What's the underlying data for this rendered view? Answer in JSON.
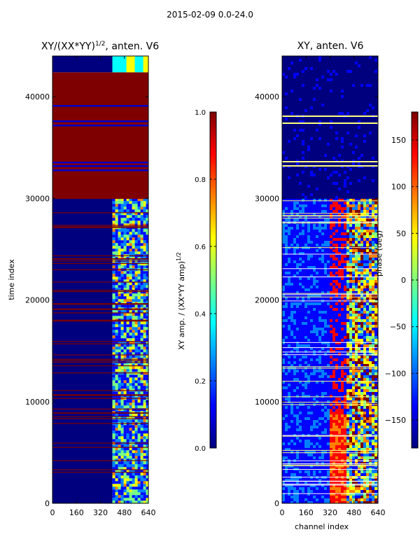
{
  "figure": {
    "suptitle": "2015-02-09 0.0-24.0"
  },
  "colormap": [
    "#00007f",
    "#0000ff",
    "#007fff",
    "#00ffff",
    "#7fff7f",
    "#ffff00",
    "#ff7f00",
    "#ff0000",
    "#7f0000"
  ],
  "chart_data": [
    {
      "type": "heatmap",
      "title": "XY/(XX*YY)",
      "title_sup": "1/2",
      "title_suffix": ", anten. V6",
      "xlabel": "",
      "ylabel": "time index",
      "x_ticks": [
        "0",
        "160",
        "320",
        "480",
        "640"
      ],
      "y_ticks": [
        "0",
        "10000",
        "20000",
        "30000",
        "40000"
      ],
      "xlim": [
        0,
        640
      ],
      "ylim": [
        0,
        44000
      ],
      "colorbar": {
        "label": "XY amp. / (XX*YY amp)",
        "label_sup": "1/2",
        "range": [
          0.0,
          1.0
        ],
        "ticks": [
          "0.0",
          "0.2",
          "0.4",
          "0.6",
          "0.8",
          "1.0"
        ]
      },
      "regions": [
        {
          "y": [
            30000,
            42400
          ],
          "x": [
            0,
            640
          ],
          "level": 1.0
        },
        {
          "y": [
            42400,
            44000
          ],
          "x": [
            0,
            400
          ],
          "level": 0.02
        },
        {
          "y": [
            42400,
            44000
          ],
          "x": [
            400,
            640
          ],
          "level": 0.45
        },
        {
          "y": [
            0,
            30000
          ],
          "x": [
            0,
            400
          ],
          "level": 0.05
        },
        {
          "y": [
            0,
            30000
          ],
          "x": [
            400,
            640
          ],
          "level": 0.4
        }
      ]
    },
    {
      "type": "heatmap",
      "title": "XY, anten. V6",
      "xlabel": "channel index",
      "ylabel": "",
      "x_ticks": [
        "0",
        "160",
        "320",
        "480",
        "640"
      ],
      "y_ticks": [
        "0",
        "10000",
        "20000",
        "30000",
        "40000"
      ],
      "xlim": [
        0,
        640
      ],
      "ylim": [
        0,
        44000
      ],
      "colorbar": {
        "label": "phase (deg)",
        "range": [
          -180,
          180
        ],
        "ticks": [
          "−150",
          "−100",
          "−50",
          "0",
          "50",
          "100",
          "150"
        ]
      },
      "regions": [
        {
          "y": [
            30000,
            44000
          ],
          "x": [
            0,
            640
          ],
          "level": 0.05
        },
        {
          "y": [
            0,
            30000
          ],
          "x": [
            0,
            300
          ],
          "level": 0.12
        },
        {
          "y": [
            10000,
            30000
          ],
          "x": [
            300,
            420
          ],
          "level": 0.9
        },
        {
          "y": [
            0,
            30000
          ],
          "x": [
            420,
            640
          ],
          "level": 0.55
        }
      ]
    }
  ]
}
